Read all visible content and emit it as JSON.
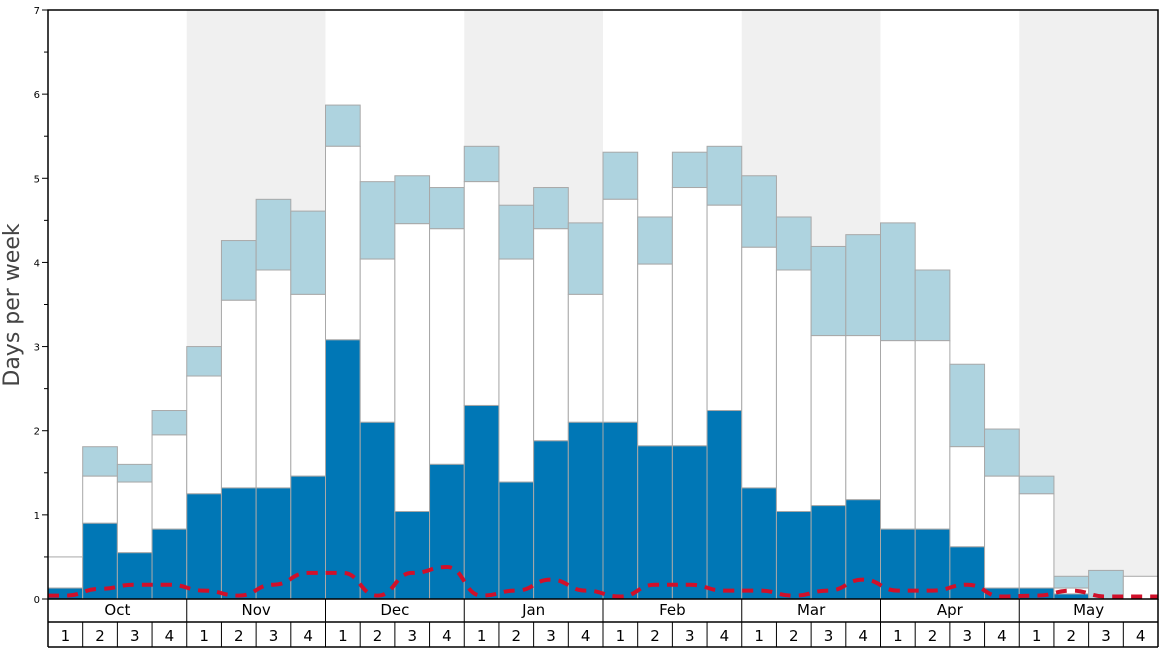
{
  "chart_data": {
    "type": "bar",
    "ylabel": "Days per week",
    "ylim": [
      0,
      7
    ],
    "yticks": [
      0,
      1,
      2,
      3,
      4,
      5,
      6,
      7
    ],
    "months": [
      "Oct",
      "Nov",
      "Dec",
      "Jan",
      "Feb",
      "Mar",
      "Apr",
      "May"
    ],
    "weeks": [
      "1",
      "2",
      "3",
      "4"
    ],
    "colors": {
      "bottom": "#0077b6",
      "middle": "#ffffff",
      "top": "#aed3df",
      "line": "#d0102a",
      "shade": "#f0f0f0"
    },
    "series": [
      {
        "values": [
          0.13,
          0.9,
          0.55,
          0.83,
          1.25,
          1.32,
          1.32,
          1.46,
          3.08,
          2.1,
          1.04,
          1.6,
          2.3,
          1.39,
          1.88,
          2.1,
          2.1,
          1.82,
          1.82,
          2.24,
          1.32,
          1.04,
          1.11,
          1.18,
          0.83,
          0.83,
          0.62,
          0.13,
          0.13,
          0.06,
          0.0,
          0.0
        ]
      },
      {
        "values": [
          0.5,
          1.46,
          1.39,
          1.95,
          2.65,
          3.55,
          3.91,
          3.62,
          5.38,
          4.04,
          4.46,
          4.4,
          4.96,
          4.04,
          4.4,
          3.62,
          4.75,
          3.98,
          4.89,
          4.68,
          4.18,
          3.91,
          3.13,
          3.13,
          3.07,
          3.07,
          1.81,
          1.46,
          1.25,
          0.13,
          0.0,
          0.27
        ]
      },
      {
        "values": [
          0.5,
          1.81,
          1.6,
          2.24,
          3.0,
          4.26,
          4.75,
          4.61,
          5.87,
          4.96,
          5.03,
          4.89,
          5.38,
          4.68,
          4.89,
          4.47,
          5.31,
          4.54,
          5.31,
          5.38,
          5.03,
          4.54,
          4.19,
          4.33,
          4.47,
          3.91,
          2.79,
          2.02,
          1.46,
          0.27,
          0.34,
          0.27
        ]
      }
    ],
    "dashed_line": [
      0.04,
      0.12,
      0.17,
      0.17,
      0.1,
      0.04,
      0.17,
      0.31,
      0.31,
      0.04,
      0.31,
      0.38,
      0.04,
      0.1,
      0.23,
      0.1,
      0.03,
      0.17,
      0.17,
      0.1,
      0.1,
      0.04,
      0.1,
      0.23,
      0.1,
      0.1,
      0.17,
      0.03,
      0.04,
      0.1,
      0.03,
      0.03
    ]
  }
}
